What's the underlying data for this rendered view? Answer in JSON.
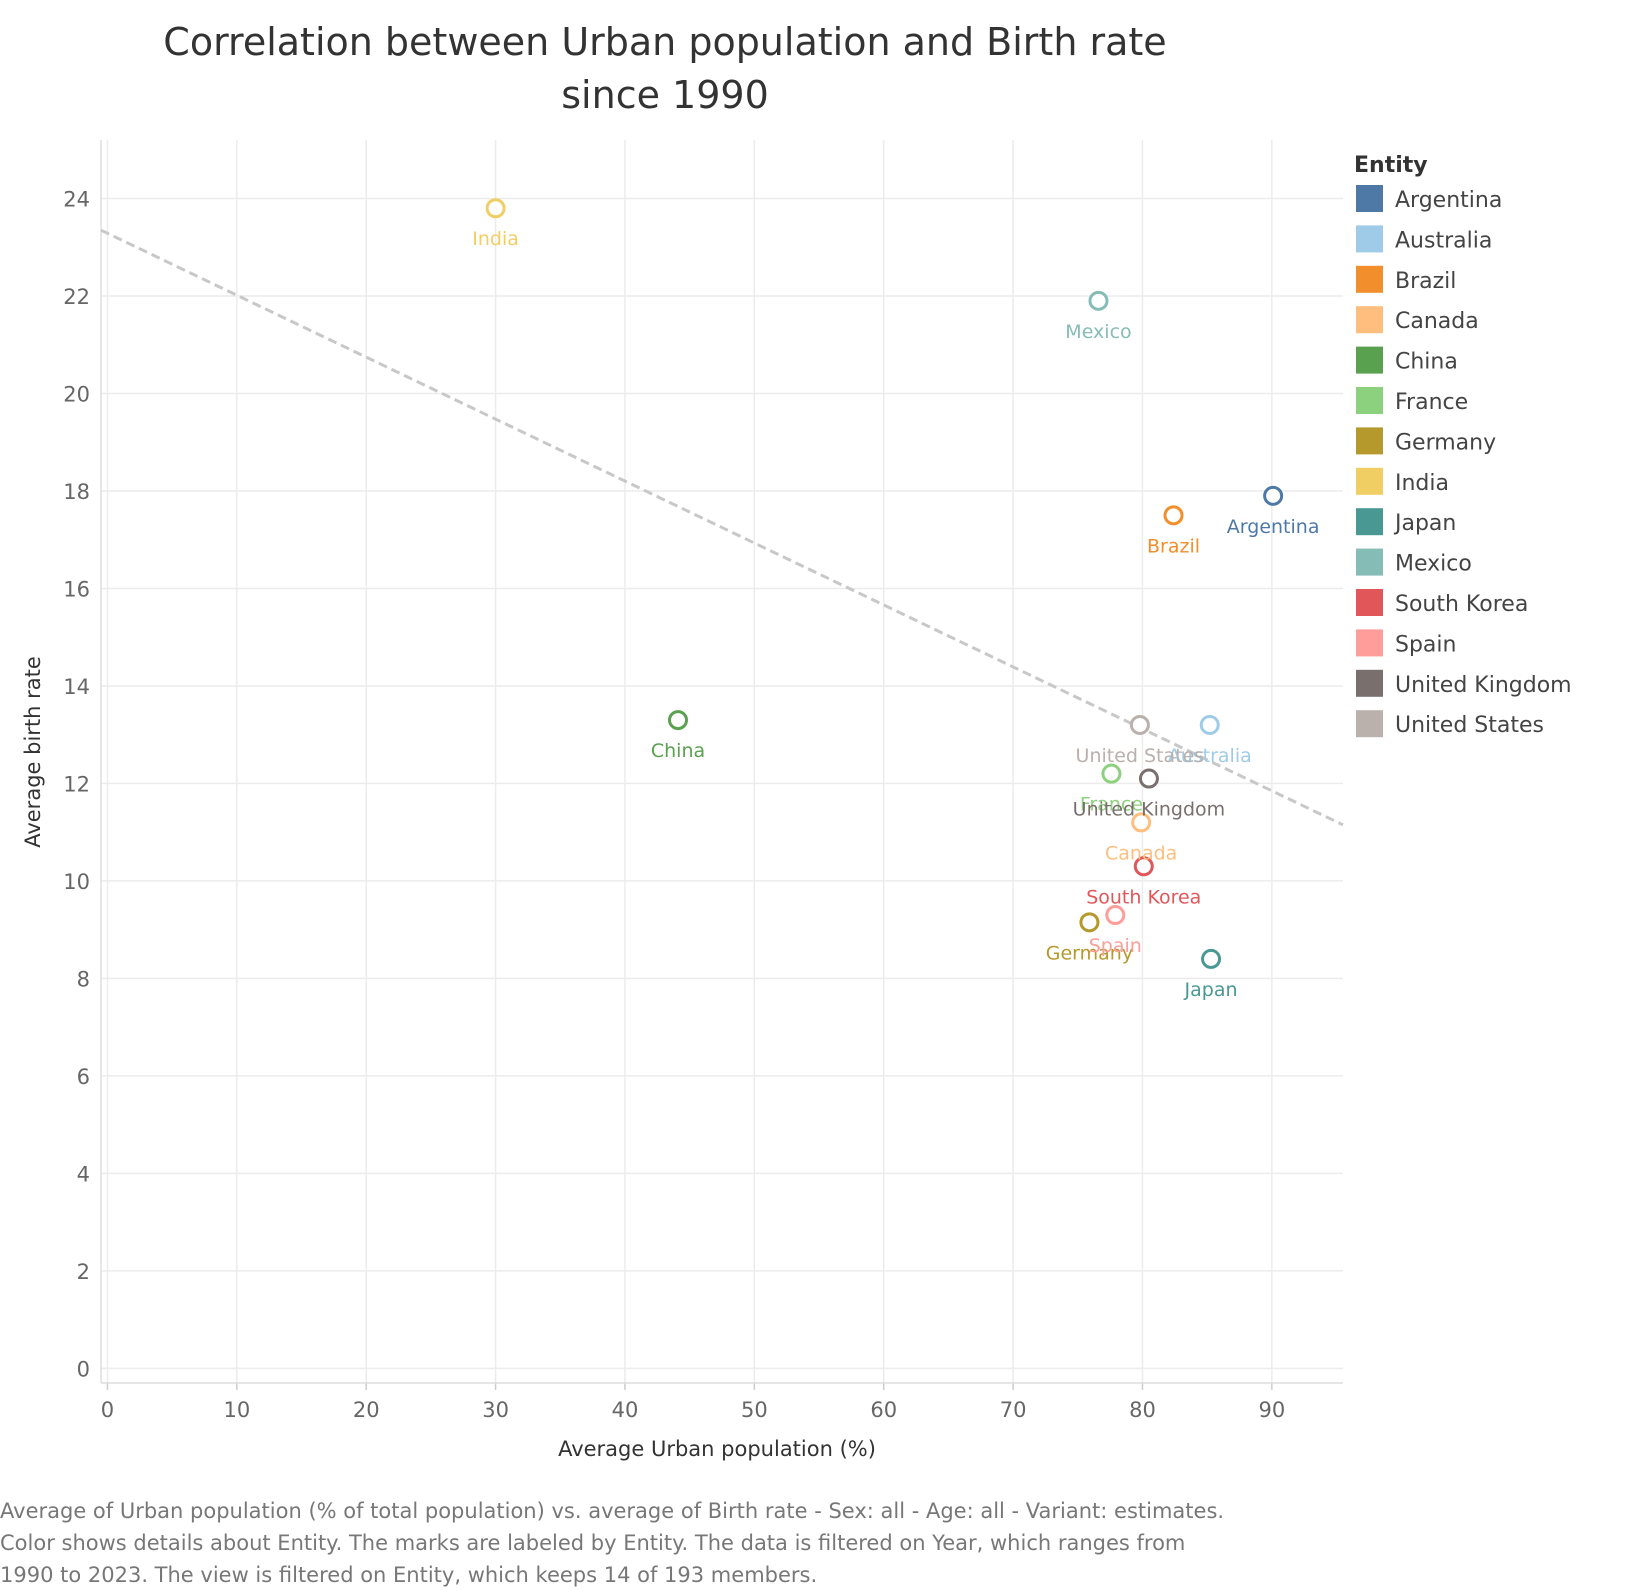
{
  "chart_data": {
    "type": "scatter",
    "title_lines": [
      "Correlation between Urban population and Birth rate",
      "since 1990"
    ],
    "xlabel": "Average Urban population (%)",
    "ylabel": "Average birth rate",
    "xlim": [
      -0.5,
      95.5
    ],
    "ylim": [
      -0.3,
      25.2
    ],
    "x_ticks": [
      0,
      10,
      20,
      30,
      40,
      50,
      60,
      70,
      80,
      90
    ],
    "y_ticks": [
      0,
      2,
      4,
      6,
      8,
      10,
      12,
      14,
      16,
      18,
      20,
      22,
      24
    ],
    "grid": true,
    "legend_title": "Entity",
    "legend_position": "right",
    "trend_line": {
      "style": "dashed",
      "color": "#c8c8c8",
      "points": [
        [
          -0.5,
          23.35
        ],
        [
          95.5,
          11.15
        ]
      ]
    },
    "series": [
      {
        "name": "Argentina",
        "color": "#4e79a7",
        "x": 90.1,
        "y": 17.9
      },
      {
        "name": "Australia",
        "color": "#a0cbe8",
        "x": 85.2,
        "y": 13.2
      },
      {
        "name": "Brazil",
        "color": "#f28e2b",
        "x": 82.4,
        "y": 17.5
      },
      {
        "name": "Canada",
        "color": "#ffbe7d",
        "x": 79.9,
        "y": 11.2
      },
      {
        "name": "China",
        "color": "#59a14f",
        "x": 44.1,
        "y": 13.3
      },
      {
        "name": "France",
        "color": "#8cd17d",
        "x": 77.6,
        "y": 12.2
      },
      {
        "name": "Germany",
        "color": "#b6992d",
        "x": 75.9,
        "y": 9.15
      },
      {
        "name": "India",
        "color": "#f1ce63",
        "x": 30.0,
        "y": 23.8
      },
      {
        "name": "Japan",
        "color": "#499894",
        "x": 85.3,
        "y": 8.4
      },
      {
        "name": "Mexico",
        "color": "#86bcb6",
        "x": 76.6,
        "y": 21.9
      },
      {
        "name": "South Korea",
        "color": "#e15759",
        "x": 80.1,
        "y": 10.3
      },
      {
        "name": "Spain",
        "color": "#ff9d9a",
        "x": 77.9,
        "y": 9.3
      },
      {
        "name": "United Kingdom",
        "color": "#79706e",
        "x": 80.5,
        "y": 12.1
      },
      {
        "name": "United States",
        "color": "#bab0ac",
        "x": 79.8,
        "y": 13.2
      }
    ]
  },
  "caption_lines": [
    "Average of Urban population (% of total population) vs. average of Birth rate - Sex: all - Age: all - Variant: estimates.",
    "Color shows details about Entity.  The marks are labeled by Entity. The data is filtered on Year, which ranges from",
    "1990 to 2023. The view is filtered on Entity, which keeps 14 of 193 members."
  ]
}
